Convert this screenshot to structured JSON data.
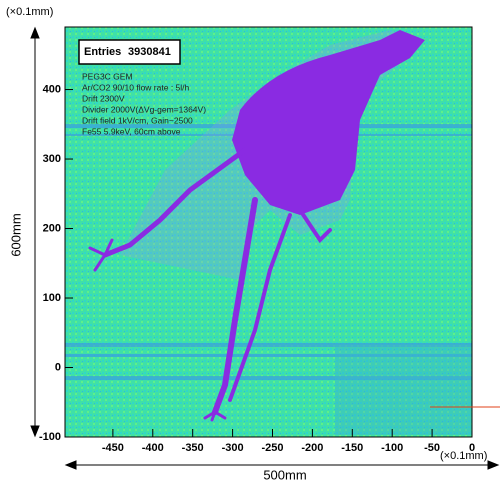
{
  "chart_data": {
    "type": "image-histogram",
    "x_unit": "(×0.1mm)",
    "y_unit": "(×0.1mm)",
    "x_size_label": "500mm",
    "y_size_label": "600mm",
    "stats": {
      "label": "Entries",
      "entries": 3930841
    },
    "annotations": [
      "PEG3C GEM",
      "Ar/CO2 90/10 flow rate : 5l/h",
      "Drift 2300V",
      "Divider 2000V(ΔVg-gem=1364V)",
      "Drift field 1kV/cm, Gain~2500",
      "Fe55 5.9keV, 60cm above"
    ],
    "xlim": [
      -510,
      0
    ],
    "xticks": [
      -450,
      -400,
      -350,
      -300,
      -250,
      -200,
      -150,
      -100,
      -50,
      0
    ],
    "ylim": [
      -100,
      490
    ],
    "yticks": [
      -100,
      0,
      100,
      200,
      300,
      400
    ]
  }
}
